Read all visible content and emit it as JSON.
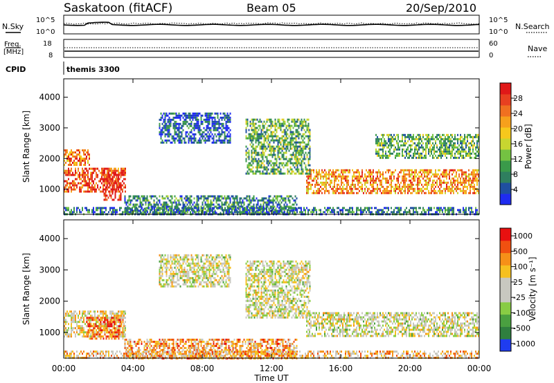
{
  "header": {
    "station": "Saskatoon (fitACF)",
    "beam": "Beam 05",
    "date": "20/Sep/2010"
  },
  "summary": {
    "nsky_label": "N.Sky",
    "nsky_ticks": [
      "10^5",
      "10^0"
    ],
    "nsearch_label": "N.Search",
    "freq_label_line1": "Freq.",
    "freq_label_line2": "[MHz]",
    "freq_ticks": [
      "18",
      "8"
    ],
    "nave_label": "Nave",
    "nave_ticks": [
      "60",
      "0"
    ],
    "cpid_label": "CPID",
    "cpid_value": "themis 3300"
  },
  "chart_data": [
    {
      "type": "heatmap",
      "name": "power",
      "ylabel": "Slant Range [km]",
      "xlabel": "",
      "yticks": [
        1000,
        2000,
        3000,
        4000
      ],
      "ylim": [
        180,
        4600
      ],
      "xlim_hours": [
        0,
        24
      ],
      "colorbar": {
        "label": "Power [dB]",
        "ticks": [
          "4",
          "8",
          "12",
          "16",
          "20",
          "24",
          "28"
        ],
        "colors": [
          "#1f2cf0",
          "#1f4fa0",
          "#2f7f5f",
          "#3a9a4a",
          "#74c242",
          "#c8d630",
          "#f6c81c",
          "#f6a01c",
          "#f07020",
          "#e84020",
          "#e01818"
        ]
      },
      "regions": [
        {
          "t": [
            0.0,
            3.6
          ],
          "r": [
            900,
            1700
          ],
          "level": 0.85
        },
        {
          "t": [
            0.0,
            1.5
          ],
          "r": [
            1800,
            2300
          ],
          "level": 0.75
        },
        {
          "t": [
            2.3,
            3.3
          ],
          "r": [
            650,
            1500
          ],
          "level": 0.95
        },
        {
          "t": [
            14.0,
            24.0
          ],
          "r": [
            900,
            1650
          ],
          "level": 0.7
        },
        {
          "t": [
            10.5,
            14.2
          ],
          "r": [
            1500,
            3300
          ],
          "level": 0.35
        },
        {
          "t": [
            5.5,
            9.6
          ],
          "r": [
            2500,
            3500
          ],
          "level": 0.15
        },
        {
          "t": [
            3.5,
            13.5
          ],
          "r": [
            200,
            800
          ],
          "level": 0.25
        },
        {
          "t": [
            18.0,
            24.0
          ],
          "r": [
            2000,
            2800
          ],
          "level": 0.35
        },
        {
          "t": [
            0.0,
            24.0
          ],
          "r": [
            180,
            420
          ],
          "level": 0.2
        }
      ]
    },
    {
      "type": "heatmap",
      "name": "velocity",
      "ylabel": "Slant Range [km]",
      "xlabel": "Time UT",
      "yticks": [
        1000,
        2000,
        3000,
        4000
      ],
      "ylim": [
        180,
        4600
      ],
      "xlim_hours": [
        0,
        24
      ],
      "xticks": [
        "00:00",
        "04:00",
        "08:00",
        "12:00",
        "16:00",
        "20:00",
        "00:00"
      ],
      "colorbar": {
        "label": "Velocity [m s⁻¹]",
        "ticks": [
          "1000",
          "500",
          "100",
          "25",
          "-25",
          "-100",
          "-500",
          "-1000"
        ],
        "colors": [
          "#1f3cf0",
          "#2f7f3f",
          "#4aa040",
          "#88cc44",
          "#c8c8c0",
          "#c8c8c0",
          "#f6c020",
          "#f69018",
          "#f05010",
          "#e81010"
        ]
      },
      "regions": [
        {
          "t": [
            0.0,
            3.6
          ],
          "r": [
            900,
            1700
          ],
          "level": 0.55
        },
        {
          "t": [
            1.3,
            3.4
          ],
          "r": [
            800,
            1500
          ],
          "level": 0.8
        },
        {
          "t": [
            14.0,
            24.0
          ],
          "r": [
            900,
            1650
          ],
          "level": 0.5
        },
        {
          "t": [
            10.5,
            14.2
          ],
          "r": [
            1500,
            3300
          ],
          "level": 0.5
        },
        {
          "t": [
            5.5,
            9.6
          ],
          "r": [
            2500,
            3500
          ],
          "level": 0.5
        },
        {
          "t": [
            3.5,
            13.5
          ],
          "r": [
            200,
            800
          ],
          "level": 0.72
        },
        {
          "t": [
            0.0,
            24.0
          ],
          "r": [
            180,
            420
          ],
          "level": 0.65
        }
      ]
    }
  ]
}
